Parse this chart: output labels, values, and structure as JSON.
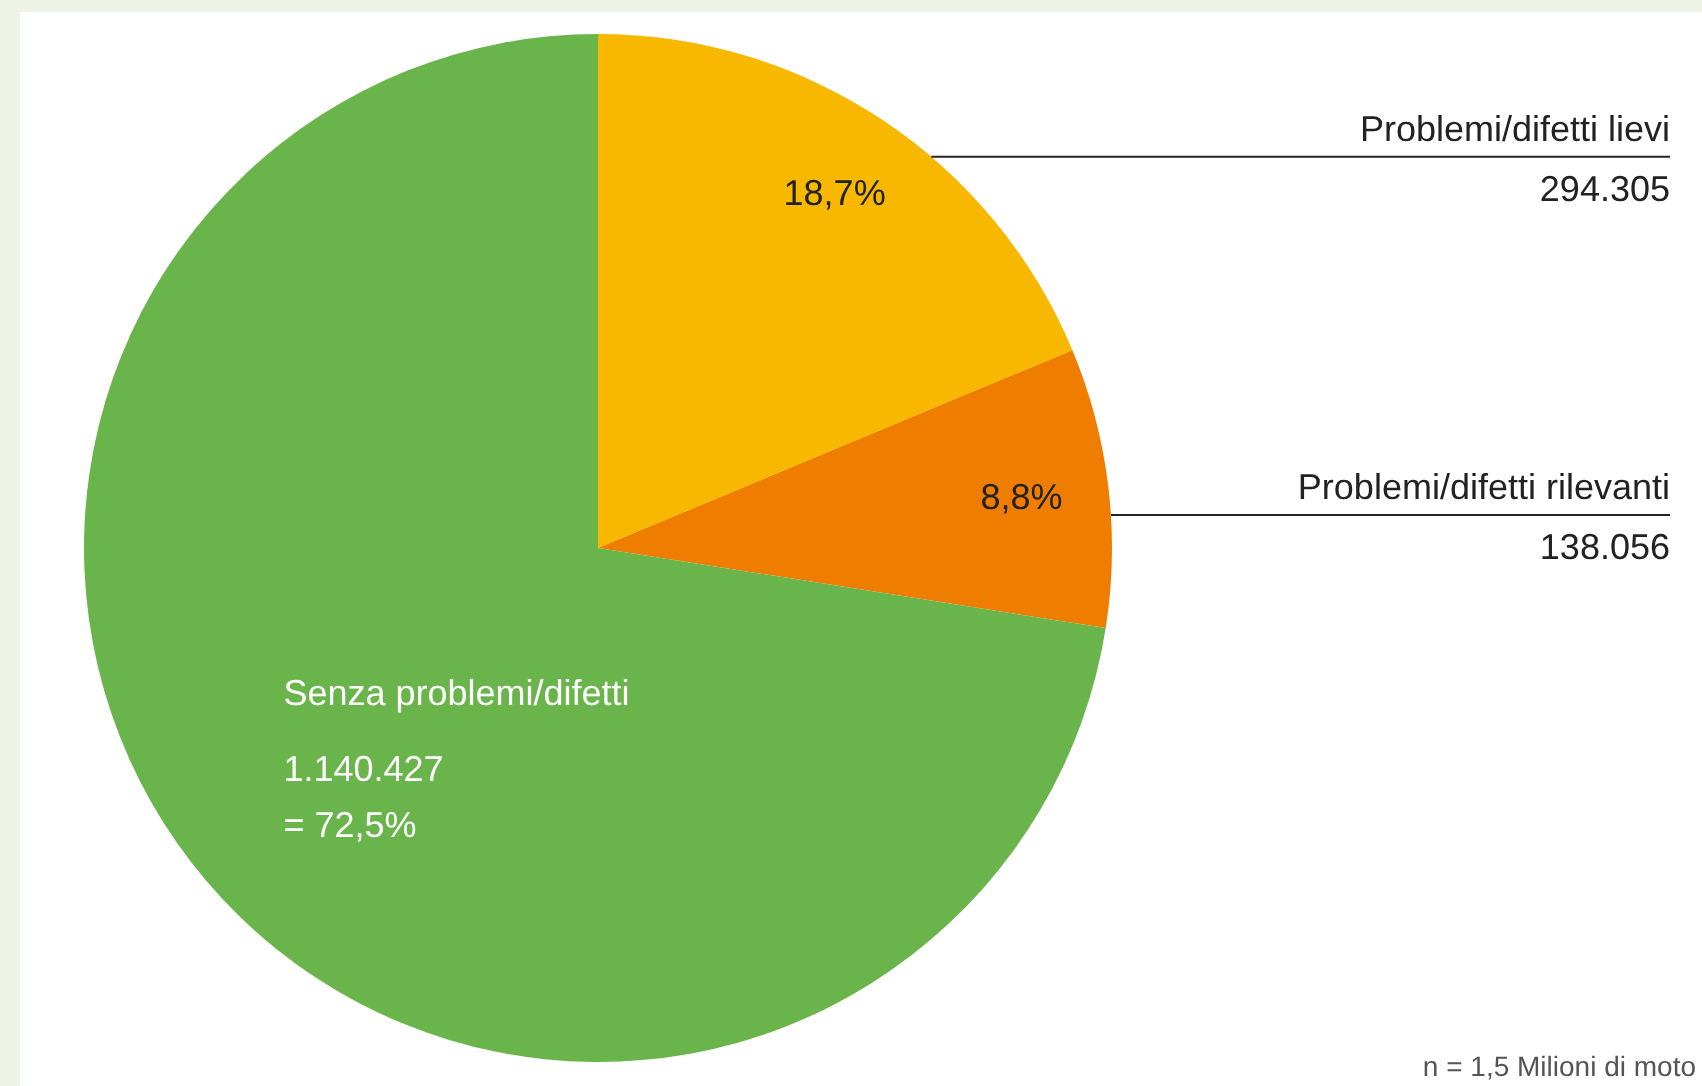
{
  "chart_data": {
    "type": "pie",
    "categories": [
      "Problemi/difetti lievi",
      "Problemi/difetti rilevanti",
      "Senza problemi/difetti"
    ],
    "values": [
      294305,
      138056,
      1140427
    ],
    "colors": [
      "#f9b800",
      "#ef7d00",
      "#6ab54b"
    ],
    "value_labels": [
      "294.305",
      "138.056",
      "1.140.427"
    ],
    "annotations": [
      {
        "text": "18,7%",
        "x": "Problemi/difetti lievi"
      },
      {
        "text": "8,8%",
        "x": "Problemi/difetti rilevanti"
      },
      {
        "text": "= 72,5%",
        "x": "Senza problemi/difetti"
      },
      "n = 1,5 Milioni di moto"
    ],
    "legend": false
  }
}
